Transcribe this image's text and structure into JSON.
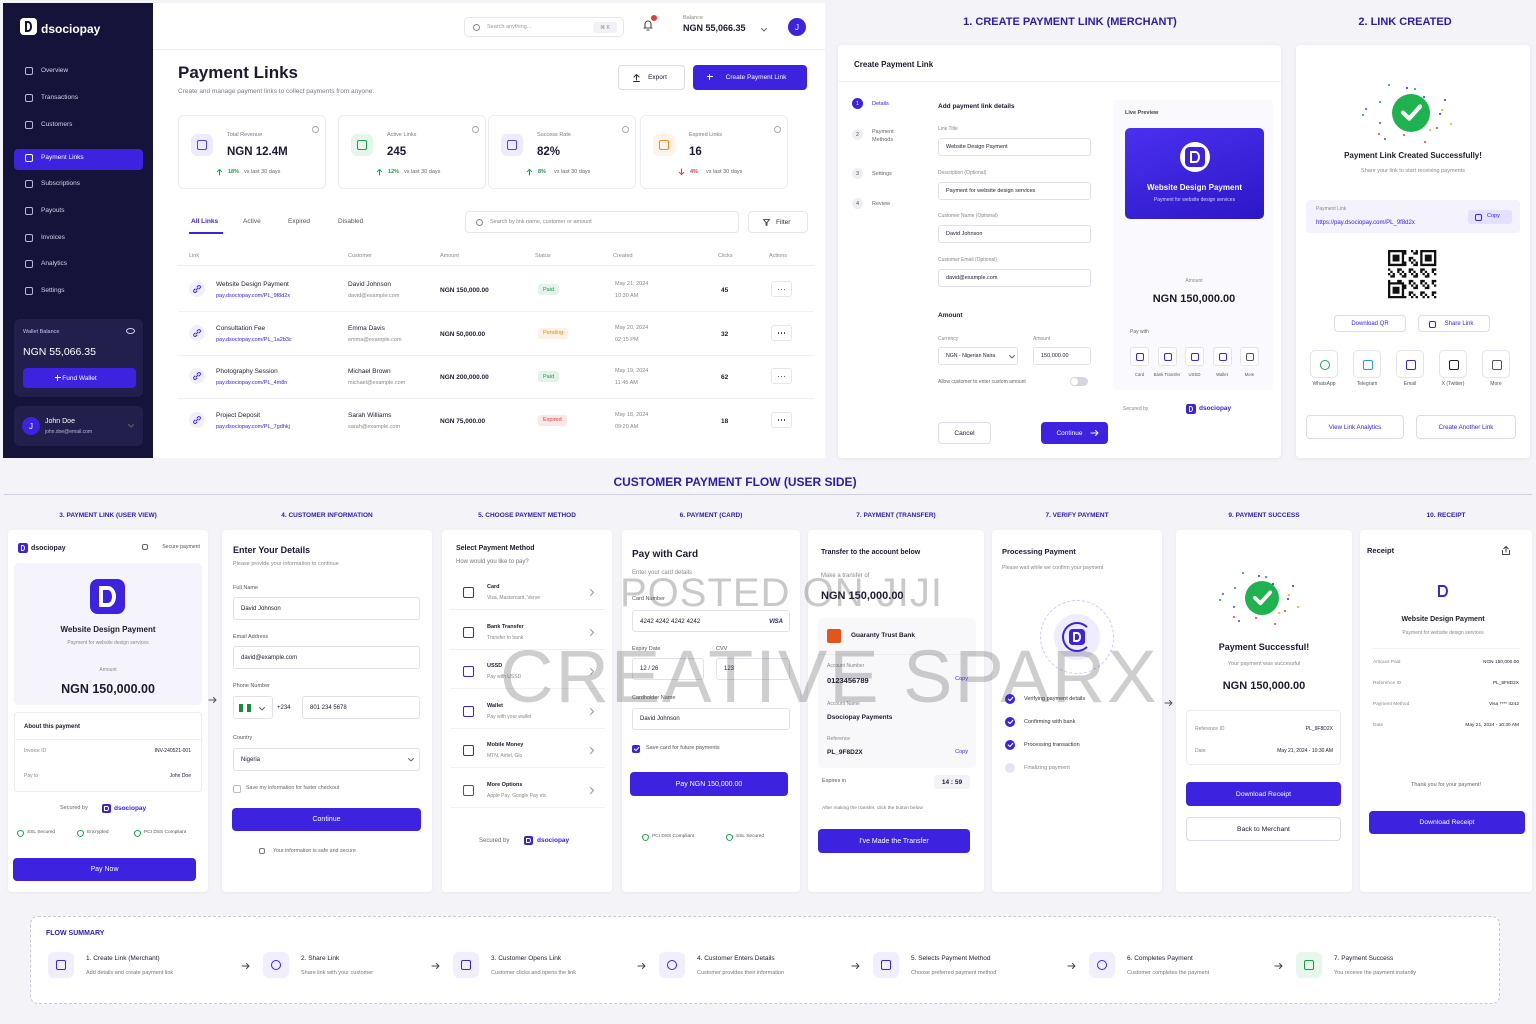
{
  "watermark": [
    "POSTED ON JIJI",
    "CREATIVE SPARX"
  ],
  "dashboard": {
    "brand": "dsociopay",
    "nav": [
      "Overview",
      "Transactions",
      "Customers",
      "Payment Links",
      "Subscriptions",
      "Payouts",
      "Invoices",
      "Analytics",
      "Settings"
    ],
    "active_nav": 3,
    "wallet": {
      "label": "Wallet Balance",
      "amount": "NGN 55,066.35",
      "button": "Fund Wallet"
    },
    "user": {
      "initial": "J",
      "name": "John Doe",
      "email": "john.doe@email.com"
    },
    "search": "Search anything...",
    "shortcut": "⌘ K",
    "balance": {
      "label": "Balance",
      "amount": "NGN 55,066.35"
    },
    "title": "Payment Links",
    "subtitle": "Create and manage payment links to collect payments from anyone.",
    "export": "Export",
    "create": "Create Payment Link",
    "stats": [
      {
        "label": "Total Revenue",
        "value": "NGN 12.4M",
        "change": "18%",
        "trend": "up",
        "note": "vs last 30 days",
        "color": "#5b3fe6"
      },
      {
        "label": "Active Links",
        "value": "245",
        "change": "12%",
        "trend": "up",
        "note": "vs last 30 days",
        "color": "#1a9d4b"
      },
      {
        "label": "Success Rate",
        "value": "82%",
        "change": "8%",
        "trend": "up",
        "note": "vs last 30 days",
        "color": "#5b3fe6"
      },
      {
        "label": "Expired Links",
        "value": "16",
        "change": "4%",
        "trend": "down",
        "note": "vs last 30 days",
        "color": "#f08a24"
      }
    ],
    "tabs": [
      "All Links",
      "Active",
      "Expired",
      "Disabled"
    ],
    "table_search": "Search by link name, customer or amount",
    "filter": "Filter",
    "headers": [
      "Link",
      "Customer",
      "Amount",
      "Status",
      "Created",
      "Clicks",
      "Actions"
    ],
    "rows": [
      {
        "name": "Website Design Payment",
        "url": "pay.dsociopay.com/PL_9f8d2x",
        "customer": "David Johnson",
        "email": "david@example.com",
        "amount": "NGN 150,000.00",
        "status": "Paid",
        "status_color": "#1a9d4b",
        "date": "May 21, 2024",
        "time": "10:30 AM",
        "clicks": 45
      },
      {
        "name": "Consultation Fee",
        "url": "pay.dsociopay.com/PL_1a2b3c",
        "customer": "Emma Davis",
        "email": "emma@example.com",
        "amount": "NGN 50,000.00",
        "status": "Pending",
        "status_color": "#e8891a",
        "date": "May 20, 2024",
        "time": "02:15 PM",
        "clicks": 32
      },
      {
        "name": "Photography Session",
        "url": "pay.dsociopay.com/PL_4m8n",
        "customer": "Michael Brown",
        "email": "michael@example.com",
        "amount": "NGN 200,000.00",
        "status": "Paid",
        "status_color": "#1a9d4b",
        "date": "May 19, 2024",
        "time": "11:45 AM",
        "clicks": 62
      },
      {
        "name": "Project Deposit",
        "url": "pay.dsociopay.com/PL_7gdhkj",
        "customer": "Sarah Williams",
        "email": "sarah@example.com",
        "amount": "NGN 75,000.00",
        "status": "Expired",
        "status_color": "#e03c3c",
        "date": "May 18, 2024",
        "time": "09:20 AM",
        "clicks": 18
      }
    ]
  },
  "merchant": {
    "section_title": "1. CREATE PAYMENT LINK (MERCHANT)",
    "card_title": "Create Payment Link",
    "steps": [
      {
        "num": "1",
        "label": "Details"
      },
      {
        "num": "2",
        "label": "Payment Methods"
      },
      {
        "num": "3",
        "label": "Settings"
      },
      {
        "num": "4",
        "label": "Review"
      }
    ],
    "form_title": "Add payment link details",
    "fields": [
      {
        "label": "Link Title",
        "value": "Website Design Payment"
      },
      {
        "label": "Description (Optional)",
        "value": "Payment for website design services"
      },
      {
        "label": "Customer Name (Optional)",
        "value": "David Johnson"
      },
      {
        "label": "Customer Email (Optional)",
        "value": "david@example.com"
      }
    ],
    "amount_title": "Amount",
    "currency_label": "Currency",
    "currency_value": "NGN - Nigerian Naira",
    "amount_label": "Amount",
    "amount_value": "150,000.00",
    "custom_toggle": "Allow customer to enter custom amount",
    "cancel": "Cancel",
    "continue": "Continue",
    "preview": {
      "label": "Live Preview",
      "title": "Website Design Payment",
      "subtitle": "Payment for website design services",
      "amount_label": "Amount",
      "amount": "NGN 150,000.00",
      "pay_with": "Pay with",
      "methods": [
        "Card",
        "Bank Transfer",
        "USSD",
        "Wallet",
        "More"
      ],
      "secured_by": "Secured by",
      "brand": "dsociopay"
    }
  },
  "link_created": {
    "section_title": "2. LINK CREATED",
    "title": "Payment Link Created Successfully!",
    "subtitle": "Share your link to start receiving payments",
    "link_label": "Payment Link",
    "link": "https://pay.dsociopay.com/PL_9f8d2x",
    "copy": "Copy",
    "download_qr": "Download QR",
    "share_link": "Share Link",
    "share": [
      "WhatsApp",
      "Telegram",
      "Email",
      "X (Twitter)",
      "More"
    ],
    "analytics": "View Link Analytics",
    "another": "Create Another Link"
  },
  "flow_title": "CUSTOMER PAYMENT FLOW (USER SIDE)",
  "payment_link_view": {
    "label": "3. PAYMENT LINK (USER VIEW)",
    "brand": "dsociopay",
    "secure": "Secure payment",
    "title": "Website Design Payment",
    "subtitle": "Payment for website design services",
    "amount_label": "Amount",
    "amount": "NGN 150,000.00",
    "about": "About this payment",
    "rows": [
      {
        "label": "Invoice ID",
        "value": "INV-240521-001"
      },
      {
        "label": "Pay to",
        "value": "John Doe"
      }
    ],
    "secured_by": "Secured by",
    "secured_brand": "dsociopay",
    "badges": [
      "SSL Secured",
      "Encrypted",
      "PCI DSS Compliant"
    ],
    "button": "Pay Now"
  },
  "customer_info": {
    "label": "4. CUSTOMER INFORMATION",
    "title": "Enter Your Details",
    "subtitle": "Please provide your information to continue",
    "name_label": "Full Name",
    "name": "David Johnson",
    "email_label": "Email Address",
    "email": "david@example.com",
    "phone_label": "Phone Number",
    "phone_code": "+234",
    "phone": "801 234 5678",
    "country_label": "Country",
    "country": "Nigeria",
    "save": "Save my information for faster checkout",
    "button": "Continue",
    "safe": "Your information is safe and secure"
  },
  "payment_method": {
    "label": "5. CHOOSE PAYMENT METHOD",
    "title": "Select Payment Method",
    "subtitle": "How would you like to pay?",
    "methods": [
      {
        "name": "Card",
        "desc": "Visa, Mastercard, Verve"
      },
      {
        "name": "Bank Transfer",
        "desc": "Transfer to bank"
      },
      {
        "name": "USSD",
        "desc": "Pay with USSD"
      },
      {
        "name": "Wallet",
        "desc": "Pay with your wallet"
      },
      {
        "name": "Mobile Money",
        "desc": "MTN, Airtel, Glo"
      },
      {
        "name": "More Options",
        "desc": "Apple Pay, Google Pay etc"
      }
    ],
    "secured_by": "Secured by",
    "brand": "dsociopay"
  },
  "card_payment": {
    "label": "6. PAYMENT (CARD)",
    "title": "Pay with Card",
    "subtitle": "Enter your card details",
    "card_label": "Card Number",
    "card": "4242 4242 4242 4242",
    "card_brand": "VISA",
    "expiry_label": "Expiry Date",
    "expiry": "12 / 26",
    "cvv_label": "CVV",
    "cvv": "123",
    "holder_label": "Cardholder Name",
    "holder": "David Johnson",
    "save": "Save card for future payments",
    "button": "Pay NGN 150,000.00",
    "badges": [
      "PCI DSS Compliant",
      "SSL Secured"
    ]
  },
  "transfer_payment": {
    "label": "7. PAYMENT (TRANSFER)",
    "title": "Transfer to the account below",
    "make": "Make a transfer of",
    "amount": "NGN 150,000.00",
    "bank": "Guaranty Trust Bank",
    "account_number_label": "Account Number",
    "account_number": "0123456789",
    "account_name_label": "Account Name",
    "account_name": "Dsociopay Payments",
    "reference_label": "Reference",
    "reference": "PL_9F8D2X",
    "copy": "Copy",
    "expires_label": "Expires in",
    "expires": "14 : 59",
    "note": "After making the transfer, click the button below",
    "button": "I've Made the Transfer"
  },
  "verify_payment": {
    "label": "7. VERIFY PAYMENT",
    "title": "Processing Payment",
    "subtitle": "Please wait while we confirm your payment",
    "steps": [
      "Verifying payment details",
      "Confirming with bank",
      "Processing transaction",
      "Finalizing payment"
    ],
    "done": 3
  },
  "payment_success": {
    "label": "9. PAYMENT SUCCESS",
    "title": "Payment Successful!",
    "subtitle": "Your payment was successful",
    "amount": "NGN 150,000.00",
    "rows": [
      {
        "label": "Reference ID",
        "value": "PL_9F8D2X"
      },
      {
        "label": "Date",
        "value": "May 21, 2024 - 10:30 AM"
      }
    ],
    "download": "Download Receipt",
    "back": "Back to Merchant"
  },
  "receipt": {
    "label": "10. RECEIPT",
    "title": "Receipt",
    "name": "Website Design Payment",
    "subtitle": "Payment for website design services",
    "rows": [
      {
        "label": "Amount Paid",
        "value": "NGN 150,000.00"
      },
      {
        "label": "Reference ID",
        "value": "PL_9F8D2X"
      },
      {
        "label": "Payment Method",
        "value": "Visa **** 4242"
      },
      {
        "label": "Date",
        "value": "May 21, 2024 - 10:30 AM"
      }
    ],
    "thanks": "Thank you for your payment!",
    "button": "Download Receipt"
  },
  "flow_summary": {
    "title": "FLOW SUMMARY",
    "steps": [
      {
        "title": "1. Create Link (Merchant)",
        "desc": "Add details and create payment link"
      },
      {
        "title": "2. Share Link",
        "desc": "Share link with your customer"
      },
      {
        "title": "3. Customer Opens Link",
        "desc": "Customer clicks and opens the link"
      },
      {
        "title": "4. Customer Enters Details",
        "desc": "Customer provides their information"
      },
      {
        "title": "5. Selects Payment Method",
        "desc": "Choose preferred payment method"
      },
      {
        "title": "6. Completes Payment",
        "desc": "Customer completes the payment"
      },
      {
        "title": "7. Payment Success",
        "desc": "You receive the payment instantly"
      }
    ]
  }
}
